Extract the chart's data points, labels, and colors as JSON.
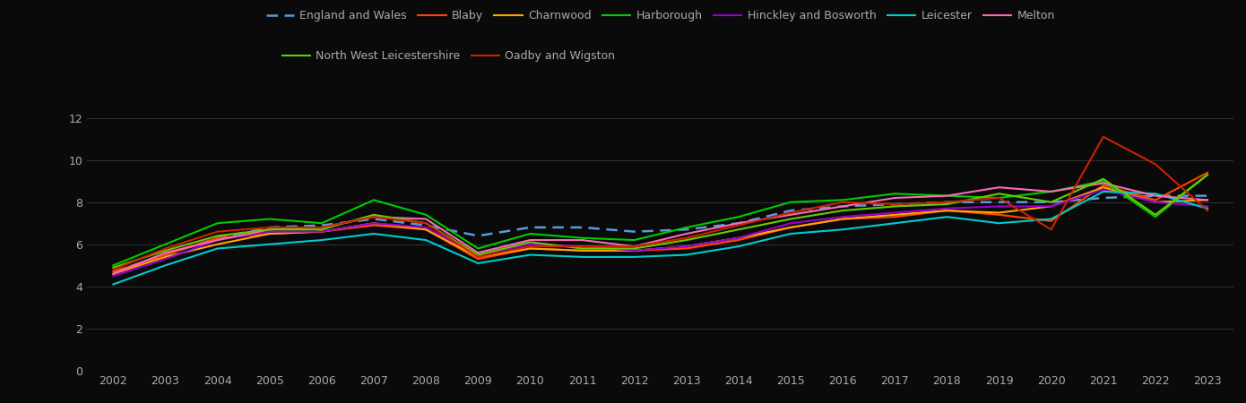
{
  "years": [
    2002,
    2003,
    2004,
    2005,
    2006,
    2007,
    2008,
    2009,
    2010,
    2011,
    2012,
    2013,
    2014,
    2015,
    2016,
    2017,
    2018,
    2019,
    2020,
    2021,
    2022,
    2023
  ],
  "series": {
    "England and Wales": [
      4.7,
      5.5,
      6.3,
      6.8,
      6.9,
      7.2,
      6.9,
      6.4,
      6.8,
      6.8,
      6.6,
      6.7,
      7.0,
      7.6,
      7.8,
      7.9,
      8.0,
      8.0,
      8.0,
      8.2,
      8.3,
      8.3
    ],
    "Blaby": [
      4.7,
      5.5,
      6.3,
      6.5,
      6.6,
      6.9,
      6.7,
      5.3,
      5.8,
      5.7,
      5.7,
      5.8,
      6.2,
      6.8,
      7.2,
      7.3,
      7.6,
      7.4,
      7.1,
      8.8,
      8.1,
      9.4
    ],
    "Charnwood": [
      4.6,
      5.4,
      6.0,
      6.5,
      6.6,
      7.0,
      6.7,
      5.4,
      5.8,
      5.7,
      5.7,
      5.9,
      6.3,
      6.8,
      7.2,
      7.4,
      7.6,
      7.5,
      7.8,
      8.7,
      8.0,
      8.1
    ],
    "Harborough": [
      5.0,
      6.0,
      7.0,
      7.2,
      7.0,
      8.1,
      7.4,
      5.8,
      6.5,
      6.3,
      6.2,
      6.8,
      7.3,
      8.0,
      8.1,
      8.4,
      8.3,
      8.2,
      8.5,
      9.0,
      7.3,
      9.3
    ],
    "Hinckley and Bosworth": [
      4.5,
      5.3,
      6.2,
      6.6,
      6.6,
      7.0,
      6.8,
      5.5,
      6.0,
      5.9,
      5.7,
      5.9,
      6.3,
      7.0,
      7.3,
      7.5,
      7.7,
      7.8,
      7.8,
      8.6,
      8.0,
      7.8
    ],
    "Leicester": [
      4.1,
      5.0,
      5.8,
      6.0,
      6.2,
      6.5,
      6.2,
      5.1,
      5.5,
      5.4,
      5.4,
      5.5,
      5.9,
      6.5,
      6.7,
      7.0,
      7.3,
      7.0,
      7.2,
      8.5,
      8.4,
      7.7
    ],
    "Melton": [
      4.6,
      5.6,
      6.2,
      6.7,
      6.8,
      7.3,
      7.2,
      5.6,
      6.2,
      6.2,
      5.9,
      6.5,
      7.0,
      7.4,
      7.8,
      8.2,
      8.3,
      8.7,
      8.5,
      8.9,
      8.3,
      8.1
    ],
    "North West Leicestershire": [
      4.9,
      5.7,
      6.4,
      6.7,
      6.7,
      7.4,
      7.0,
      5.5,
      6.1,
      5.8,
      5.8,
      6.2,
      6.7,
      7.2,
      7.6,
      7.8,
      7.9,
      8.4,
      8.0,
      9.1,
      7.4,
      9.3
    ],
    "Oadby and Wigston": [
      4.8,
      5.8,
      6.6,
      6.8,
      6.8,
      7.3,
      7.0,
      5.4,
      5.9,
      5.9,
      5.9,
      6.3,
      6.9,
      7.5,
      8.0,
      7.9,
      8.0,
      8.2,
      6.7,
      11.1,
      9.8,
      7.6
    ]
  },
  "colors": {
    "England and Wales": "#5b9bd5",
    "Blaby": "#ff4500",
    "Charnwood": "#ffa500",
    "Harborough": "#00cc00",
    "Hinckley and Bosworth": "#9900cc",
    "Leicester": "#00cccc",
    "Melton": "#ff69b4",
    "North West Leicestershire": "#66cc00",
    "Oadby and Wigston": "#cc2200"
  },
  "legend_row1": [
    "England and Wales",
    "Blaby",
    "Charnwood",
    "Harborough",
    "Hinckley and Bosworth",
    "Leicester",
    "Melton"
  ],
  "legend_row2": [
    "North West Leicestershire",
    "Oadby and Wigston"
  ],
  "background_color": "#0a0a0a",
  "text_color": "#aaaaaa",
  "grid_color": "#333333",
  "ylim": [
    0,
    13
  ],
  "yticks": [
    0,
    2,
    4,
    6,
    8,
    10,
    12
  ]
}
